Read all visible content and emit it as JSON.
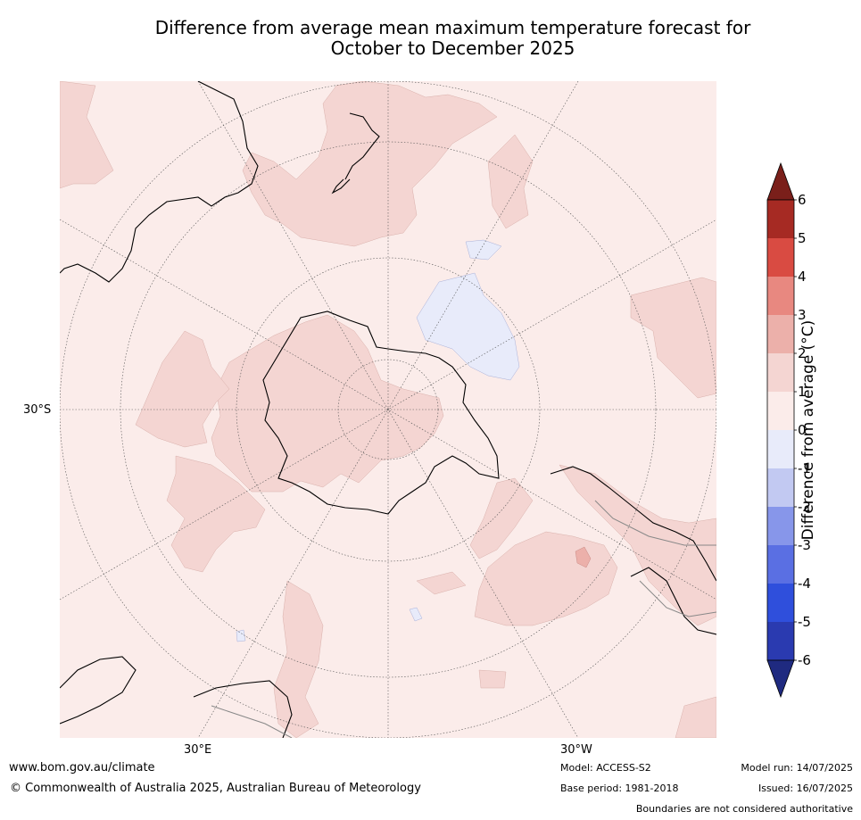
{
  "title": {
    "line1": "Difference from average mean maximum temperature forecast for",
    "line2": "October to December 2025"
  },
  "map": {
    "projection": "south-polar-stereographic",
    "lat_label": "30°S",
    "lon_labels": [
      "30°E",
      "30°W"
    ],
    "palette": {
      "zero_to_one": "#fbecea",
      "one_to_two": "#f4d5d2",
      "two_to_three": "#ecb0aa",
      "minus_one_to_zero": "#e8ebfa",
      "coast": "#000000",
      "boundary": "#888888",
      "grid": "#555555"
    }
  },
  "colorbar": {
    "title": "Difference from average (°C)",
    "tick_labels": [
      "6",
      "5",
      "4",
      "3",
      "2",
      "1",
      "0",
      "-1",
      "-2",
      "-3",
      "-4",
      "-5",
      "-6"
    ],
    "colors": [
      "#a62a23",
      "#d94b42",
      "#e88880",
      "#ecb0aa",
      "#f4d5d2",
      "#fbecea",
      "#e8ebfa",
      "#c2c9f2",
      "#8796ea",
      "#5a6fe3",
      "#2f4fdc",
      "#2a3ab0"
    ],
    "over_color": "#7a1f1a",
    "under_color": "#1f2a80"
  },
  "footer": {
    "url": "www.bom.gov.au/climate",
    "copyright": "© Commonwealth of Australia 2025, Australian Bureau of Meteorology",
    "model": "Model: ACCESS-S2",
    "base_period": "Base period: 1981-2018",
    "model_run": "Model run: 14/07/2025",
    "issued": "Issued: 16/07/2025",
    "disclaimer": "Boundaries are not considered authoritative"
  }
}
